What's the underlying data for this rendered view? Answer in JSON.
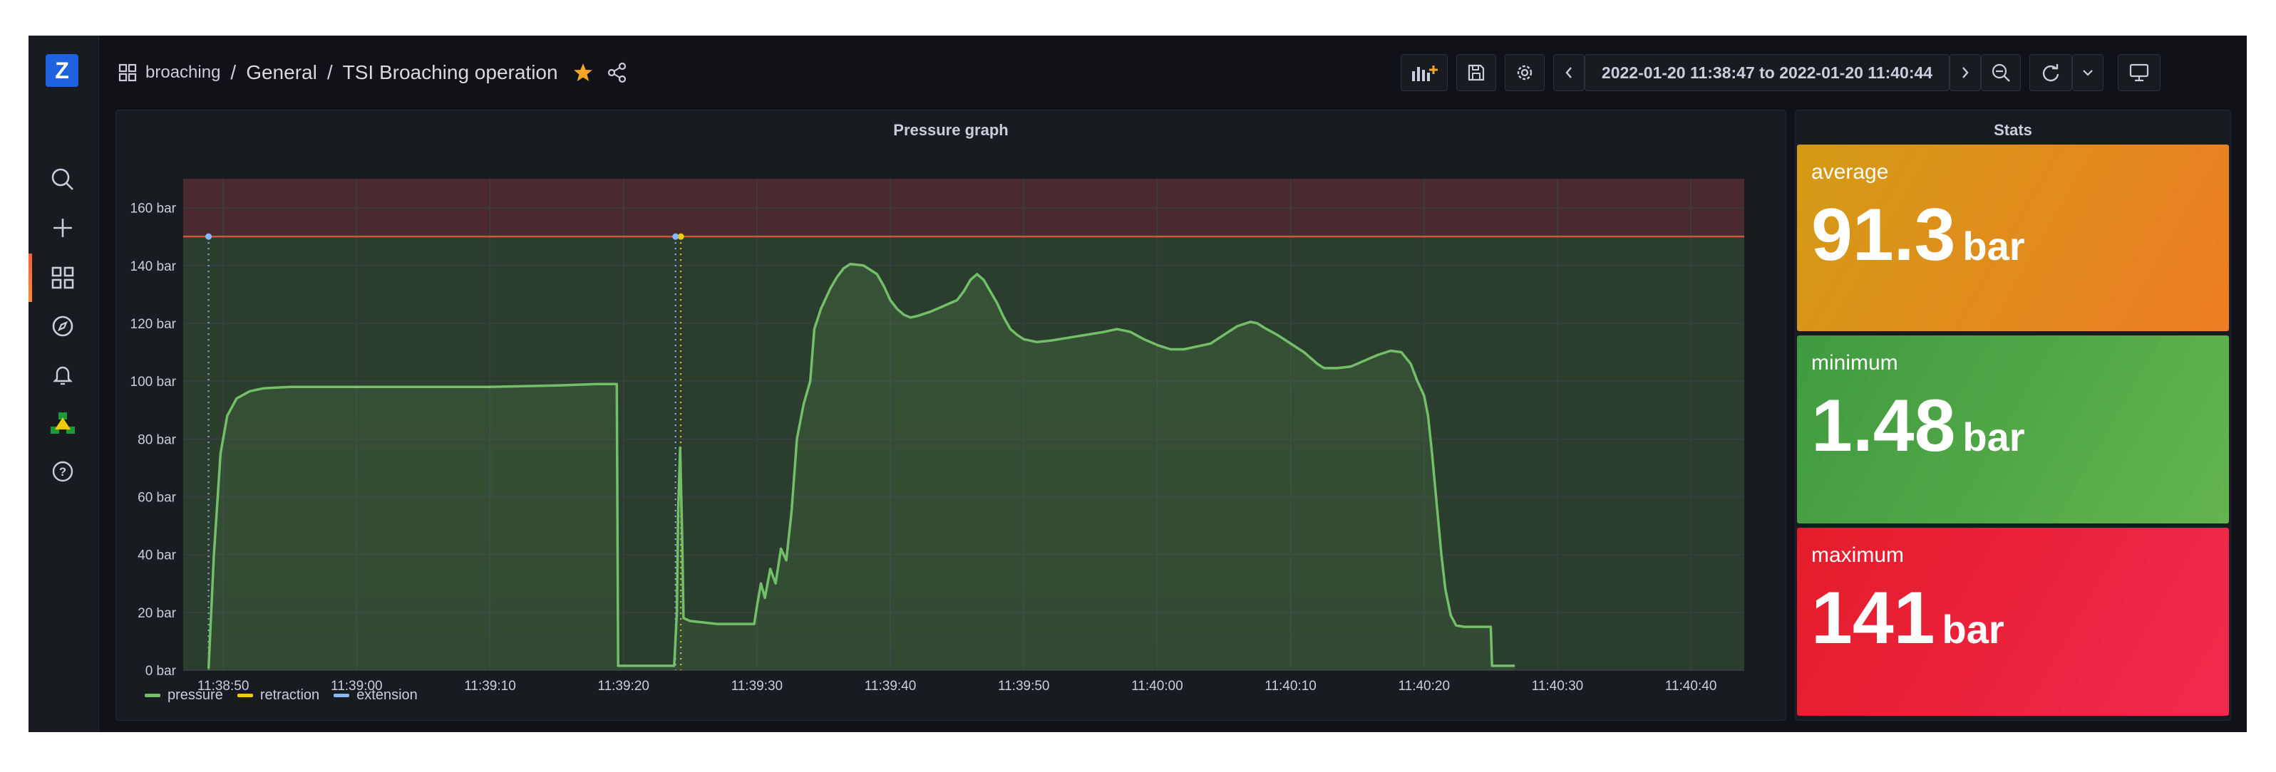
{
  "breadcrumb": {
    "folder": "broaching",
    "section": "General",
    "dashboard": "TSI Broaching operation",
    "sep": "/"
  },
  "toolbar": {
    "time_range": "2022-01-20 11:38:47 to 2022-01-20 11:40:44"
  },
  "sidebar": {
    "logo": "Z"
  },
  "panels": {
    "graph_title": "Pressure graph",
    "stats_title": "Stats"
  },
  "stats": [
    {
      "label": "average",
      "value": "91.3",
      "unit": "bar",
      "color_from": "#d39b15",
      "color_to": "#ee7d25"
    },
    {
      "label": "minimum",
      "value": "1.48",
      "unit": "bar",
      "color_from": "#3f9a3f",
      "color_to": "#63b44f"
    },
    {
      "label": "maximum",
      "value": "141",
      "unit": "bar",
      "color_from": "#e41c2a",
      "color_to": "#f02a4e"
    }
  ],
  "chart_data": {
    "type": "line",
    "title": "Pressure graph",
    "xlabel": "",
    "ylabel": "",
    "ylim": [
      0,
      170
    ],
    "xlim": [
      "11:38:47",
      "11:40:44"
    ],
    "threshold": {
      "value": 150,
      "color": "#e24d42"
    },
    "y_ticks": [
      "0 bar",
      "20 bar",
      "40 bar",
      "60 bar",
      "80 bar",
      "100 bar",
      "120 bar",
      "140 bar",
      "160 bar"
    ],
    "y_tick_values": [
      0,
      20,
      40,
      60,
      80,
      100,
      120,
      140,
      160
    ],
    "x_ticks": [
      "11:38:50",
      "11:39:00",
      "11:39:10",
      "11:39:20",
      "11:39:30",
      "11:39:40",
      "11:39:50",
      "11:40:00",
      "11:40:10",
      "11:40:20",
      "11:40:30",
      "11:40:40"
    ],
    "x_tick_seconds": [
      50,
      60,
      70,
      80,
      90,
      100,
      110,
      120,
      130,
      140,
      150,
      160
    ],
    "legend": [
      "pressure",
      "retraction",
      "extension"
    ],
    "legend_placement": "bottom-left",
    "series": [
      {
        "name": "pressure",
        "color": "#73bf69",
        "points": [
          [
            48.9,
            0.5
          ],
          [
            49.3,
            40
          ],
          [
            49.8,
            75
          ],
          [
            50.3,
            88
          ],
          [
            51,
            94
          ],
          [
            52,
            96.5
          ],
          [
            53,
            97.5
          ],
          [
            55,
            98
          ],
          [
            60,
            98
          ],
          [
            65,
            98
          ],
          [
            70,
            98
          ],
          [
            75,
            98.5
          ],
          [
            78,
            99
          ],
          [
            79.5,
            99
          ],
          [
            79.6,
            1.5
          ],
          [
            83.8,
            1.5
          ],
          [
            84,
            20
          ],
          [
            84.1,
            55
          ],
          [
            84.25,
            77
          ],
          [
            84.4,
            45
          ],
          [
            84.5,
            18
          ],
          [
            85,
            17
          ],
          [
            86,
            16.5
          ],
          [
            87,
            16
          ],
          [
            88,
            16
          ],
          [
            89.8,
            16
          ],
          [
            90,
            22
          ],
          [
            90.3,
            30
          ],
          [
            90.6,
            25
          ],
          [
            91,
            35
          ],
          [
            91.4,
            30
          ],
          [
            91.8,
            42
          ],
          [
            92.2,
            38
          ],
          [
            92.6,
            55
          ],
          [
            93,
            80
          ],
          [
            93.5,
            92
          ],
          [
            94,
            100
          ],
          [
            94.3,
            118
          ],
          [
            94.8,
            125
          ],
          [
            95.5,
            132
          ],
          [
            96,
            136
          ],
          [
            96.5,
            139
          ],
          [
            97,
            140.5
          ],
          [
            98,
            140
          ],
          [
            99,
            137
          ],
          [
            99.5,
            133
          ],
          [
            100,
            128
          ],
          [
            100.5,
            125
          ],
          [
            101,
            123
          ],
          [
            101.5,
            122
          ],
          [
            102,
            122.5
          ],
          [
            103,
            124
          ],
          [
            104,
            126
          ],
          [
            105,
            128
          ],
          [
            105.5,
            131
          ],
          [
            106,
            135
          ],
          [
            106.5,
            137
          ],
          [
            107,
            135
          ],
          [
            107.5,
            131
          ],
          [
            108,
            127
          ],
          [
            108.5,
            122
          ],
          [
            109,
            118
          ],
          [
            109.5,
            116
          ],
          [
            110,
            114.5
          ],
          [
            111,
            113.5
          ],
          [
            112,
            114
          ],
          [
            114,
            115.5
          ],
          [
            116,
            117
          ],
          [
            117,
            118
          ],
          [
            118,
            117
          ],
          [
            119,
            114.5
          ],
          [
            120,
            112.5
          ],
          [
            121,
            111
          ],
          [
            122,
            111
          ],
          [
            123,
            112
          ],
          [
            124,
            113
          ],
          [
            125,
            116
          ],
          [
            126,
            119
          ],
          [
            127,
            120.5
          ],
          [
            127.5,
            120
          ],
          [
            128,
            118.5
          ],
          [
            129,
            116
          ],
          [
            130,
            113
          ],
          [
            131,
            110
          ],
          [
            132,
            106
          ],
          [
            132.5,
            104.5
          ],
          [
            133.5,
            104.5
          ],
          [
            134.5,
            105
          ],
          [
            135.5,
            107
          ],
          [
            136.5,
            109
          ],
          [
            137.5,
            110.5
          ],
          [
            138.3,
            110
          ],
          [
            139,
            106
          ],
          [
            139.5,
            100
          ],
          [
            140,
            95
          ],
          [
            140.3,
            88
          ],
          [
            140.6,
            75
          ],
          [
            141,
            55
          ],
          [
            141.3,
            40
          ],
          [
            141.6,
            28
          ],
          [
            142,
            19
          ],
          [
            142.4,
            15.5
          ],
          [
            143,
            15
          ],
          [
            145,
            15
          ],
          [
            145.1,
            1.5
          ],
          [
            146.8,
            1.5
          ]
        ]
      },
      {
        "name": "retraction",
        "color": "#f2cc0c",
        "events": [
          84.3
        ]
      },
      {
        "name": "extension",
        "color": "#8ab8ff",
        "events": [
          48.9,
          83.9
        ]
      }
    ]
  }
}
